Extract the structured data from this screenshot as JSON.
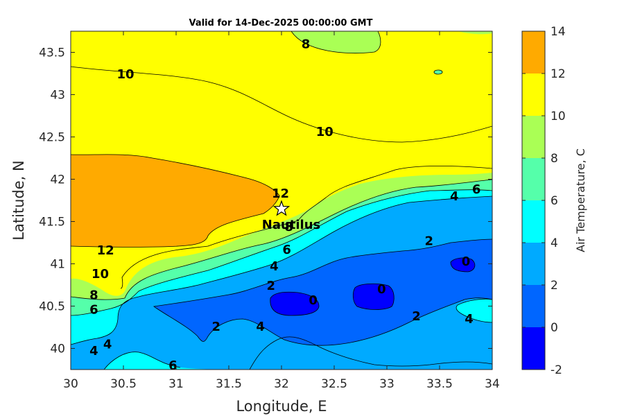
{
  "chart_data": {
    "type": "filled-contour",
    "title": "Valid for 14-Dec-2025 00:00:00 GMT",
    "xlabel": "Longitude, E",
    "ylabel": "Latitude, N",
    "xlim": [
      30,
      34
    ],
    "ylim": [
      39.75,
      43.75
    ],
    "xticks": [
      30,
      30.5,
      31,
      31.5,
      32,
      32.5,
      33,
      33.5,
      34
    ],
    "xtick_labels": [
      "30",
      "30.5",
      "31",
      "31.5",
      "32",
      "32.5",
      "33",
      "33.5",
      "34"
    ],
    "yticks": [
      40,
      40.5,
      41,
      41.5,
      42,
      42.5,
      43,
      43.5
    ],
    "ytick_labels": [
      "40",
      "40.5",
      "41",
      "41.5",
      "42",
      "42.5",
      "43",
      "43.5"
    ],
    "colorbar": {
      "label": "Air Temperature, C",
      "levels": [
        -2,
        0,
        2,
        4,
        6,
        8,
        10,
        12,
        14
      ],
      "tick_labels": [
        "-2",
        "0",
        "2",
        "4",
        "6",
        "8",
        "10",
        "12",
        "14"
      ],
      "colors": [
        "#0000ff",
        "#0066ff",
        "#00aaff",
        "#00ffff",
        "#55ffaa",
        "#aaff55",
        "#ffff00",
        "#ffaa00",
        "#ff5500"
      ]
    },
    "contour_labels": [
      {
        "text": "8",
        "lon": 32.23,
        "lat": 43.6
      },
      {
        "text": "10",
        "lon": 30.52,
        "lat": 43.24
      },
      {
        "text": "10",
        "lon": 32.41,
        "lat": 42.56
      },
      {
        "text": "12",
        "lon": 31.99,
        "lat": 41.83
      },
      {
        "text": "4",
        "lon": 33.64,
        "lat": 41.8
      },
      {
        "text": "6",
        "lon": 33.85,
        "lat": 41.88
      },
      {
        "text": "8",
        "lon": 32.07,
        "lat": 41.44
      },
      {
        "text": "6",
        "lon": 32.05,
        "lat": 41.17
      },
      {
        "text": "2",
        "lon": 33.4,
        "lat": 41.27
      },
      {
        "text": "0",
        "lon": 33.75,
        "lat": 41.03
      },
      {
        "text": "12",
        "lon": 30.33,
        "lat": 41.16
      },
      {
        "text": "10",
        "lon": 30.28,
        "lat": 40.88
      },
      {
        "text": "4",
        "lon": 31.93,
        "lat": 40.97
      },
      {
        "text": "2",
        "lon": 31.9,
        "lat": 40.74
      },
      {
        "text": "0",
        "lon": 32.3,
        "lat": 40.57
      },
      {
        "text": "0",
        "lon": 32.95,
        "lat": 40.7
      },
      {
        "text": "8",
        "lon": 30.22,
        "lat": 40.63
      },
      {
        "text": "6",
        "lon": 30.22,
        "lat": 40.46
      },
      {
        "text": "2",
        "lon": 31.38,
        "lat": 40.26
      },
      {
        "text": "4",
        "lon": 31.8,
        "lat": 40.26
      },
      {
        "text": "2",
        "lon": 33.28,
        "lat": 40.38
      },
      {
        "text": "4",
        "lon": 33.78,
        "lat": 40.35
      },
      {
        "text": "4",
        "lon": 30.35,
        "lat": 40.05
      },
      {
        "text": "4",
        "lon": 30.22,
        "lat": 39.97
      },
      {
        "text": "6",
        "lon": 30.97,
        "lat": 39.8
      }
    ],
    "station": {
      "name": "Nautilus",
      "lon": 32.0,
      "lat": 41.65
    }
  }
}
